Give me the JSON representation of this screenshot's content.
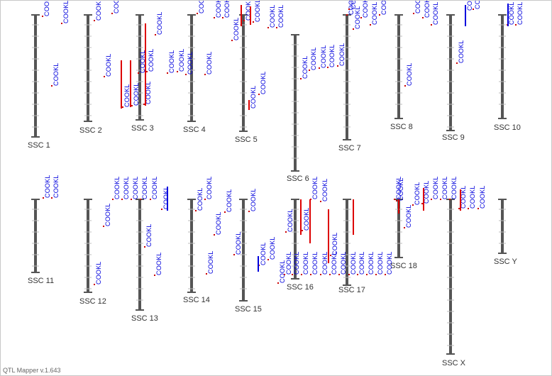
{
  "app": {
    "version_text": "QTL Mapper v.1.643"
  },
  "colors": {
    "chromosome": "#555555",
    "tick": "#bbbbbb",
    "qtl_label": "#0000dd",
    "qtl_bar_red": "#dd0000",
    "qtl_bar_blue": "#0000dd",
    "marker": "#cc0000"
  },
  "qtl_label_text": "COOKL",
  "chromosomes": [
    {
      "name": "SSC 1"
    },
    {
      "name": "SSC 2"
    },
    {
      "name": "SSC 3"
    },
    {
      "name": "SSC 4"
    },
    {
      "name": "SSC 5"
    },
    {
      "name": "SSC 6"
    },
    {
      "name": "SSC 7"
    },
    {
      "name": "SSC 8"
    },
    {
      "name": "SSC 9"
    },
    {
      "name": "SSC 10"
    },
    {
      "name": "SSC 11"
    },
    {
      "name": "SSC 12"
    },
    {
      "name": "SSC 13"
    },
    {
      "name": "SSC 14"
    },
    {
      "name": "SSC 15"
    },
    {
      "name": "SSC 16"
    },
    {
      "name": "SSC 17"
    },
    {
      "name": "SSC 18"
    },
    {
      "name": "SSC X"
    },
    {
      "name": "SSC Y"
    }
  ]
}
